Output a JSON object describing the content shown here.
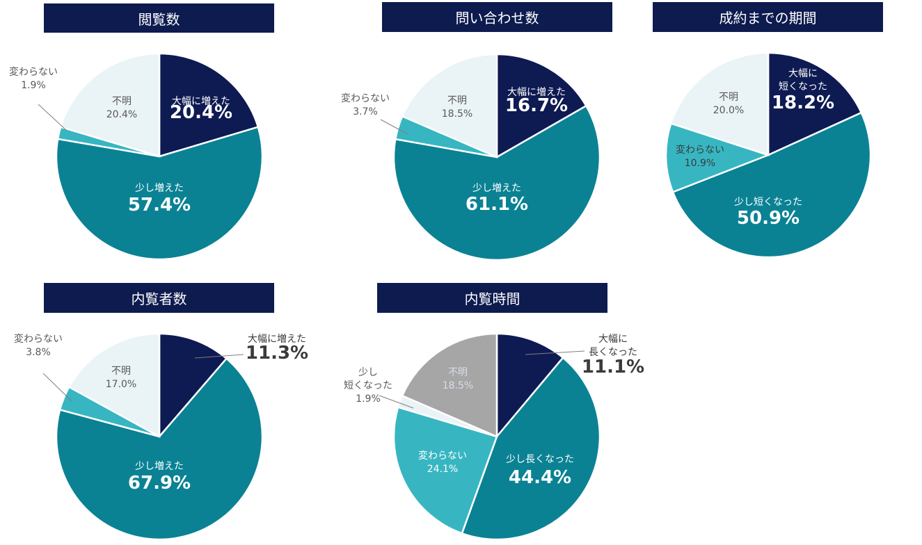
{
  "colors": {
    "title_bg": "#0d1b4f",
    "navy": "#0e1a52",
    "teal_dark": "#0a8294",
    "teal_light": "#37b6c2",
    "pale": "#eaf3f5",
    "gray": "#a6a6a6",
    "label_dark": "#3b3b3b",
    "label_gray": "#595959",
    "label_white": "#ffffff",
    "label_white_soft": "#d8dde8"
  },
  "chart_data": [
    {
      "type": "pie",
      "title": "閲覧数",
      "slices": [
        {
          "label": "大幅に増えた",
          "value": 20.4,
          "display": "20.4%",
          "color": "#0e1a52"
        },
        {
          "label": "少し増えた",
          "value": 57.4,
          "display": "57.4%",
          "color": "#0a8294"
        },
        {
          "label": "変わらない",
          "value": 1.9,
          "display": "1.9%",
          "color": "#37b6c2"
        },
        {
          "label": "不明",
          "value": 20.4,
          "display": "20.4%",
          "color": "#eaf3f5"
        }
      ]
    },
    {
      "type": "pie",
      "title": "問い合わせ数",
      "slices": [
        {
          "label": "大幅に増えた",
          "value": 16.7,
          "display": "16.7%",
          "color": "#0e1a52"
        },
        {
          "label": "少し増えた",
          "value": 61.1,
          "display": "61.1%",
          "color": "#0a8294"
        },
        {
          "label": "変わらない",
          "value": 3.7,
          "display": "3.7%",
          "color": "#37b6c2"
        },
        {
          "label": "不明",
          "value": 18.5,
          "display": "18.5%",
          "color": "#eaf3f5"
        }
      ]
    },
    {
      "type": "pie",
      "title": "成約までの期間",
      "slices": [
        {
          "label": "大幅に\n短くなった",
          "value": 18.2,
          "display": "18.2%",
          "color": "#0e1a52"
        },
        {
          "label": "少し短くなった",
          "value": 50.9,
          "display": "50.9%",
          "color": "#0a8294"
        },
        {
          "label": "変わらない",
          "value": 10.9,
          "display": "10.9%",
          "color": "#37b6c2"
        },
        {
          "label": "不明",
          "value": 20.0,
          "display": "20.0%",
          "color": "#eaf3f5"
        }
      ]
    },
    {
      "type": "pie",
      "title": "内覧者数",
      "slices": [
        {
          "label": "大幅に増えた",
          "value": 11.3,
          "display": "11.3%",
          "color": "#0e1a52"
        },
        {
          "label": "少し増えた",
          "value": 67.9,
          "display": "67.9%",
          "color": "#0a8294"
        },
        {
          "label": "変わらない",
          "value": 3.8,
          "display": "3.8%",
          "color": "#37b6c2"
        },
        {
          "label": "不明",
          "value": 17.0,
          "display": "17.0%",
          "color": "#eaf3f5"
        }
      ]
    },
    {
      "type": "pie",
      "title": "内覧時間",
      "slices": [
        {
          "label": "大幅に\n長くなった",
          "value": 11.1,
          "display": "11.1%",
          "color": "#0e1a52"
        },
        {
          "label": "少し長くなった",
          "value": 44.4,
          "display": "44.4%",
          "color": "#0a8294"
        },
        {
          "label": "変わらない",
          "value": 24.1,
          "display": "24.1%",
          "color": "#37b6c2"
        },
        {
          "label": "少し\n短くなった",
          "value": 1.9,
          "display": "1.9%",
          "color": "#eaf3f5"
        },
        {
          "label": "不明",
          "value": 18.5,
          "display": "18.5%",
          "color": "#a6a6a6"
        }
      ]
    }
  ]
}
